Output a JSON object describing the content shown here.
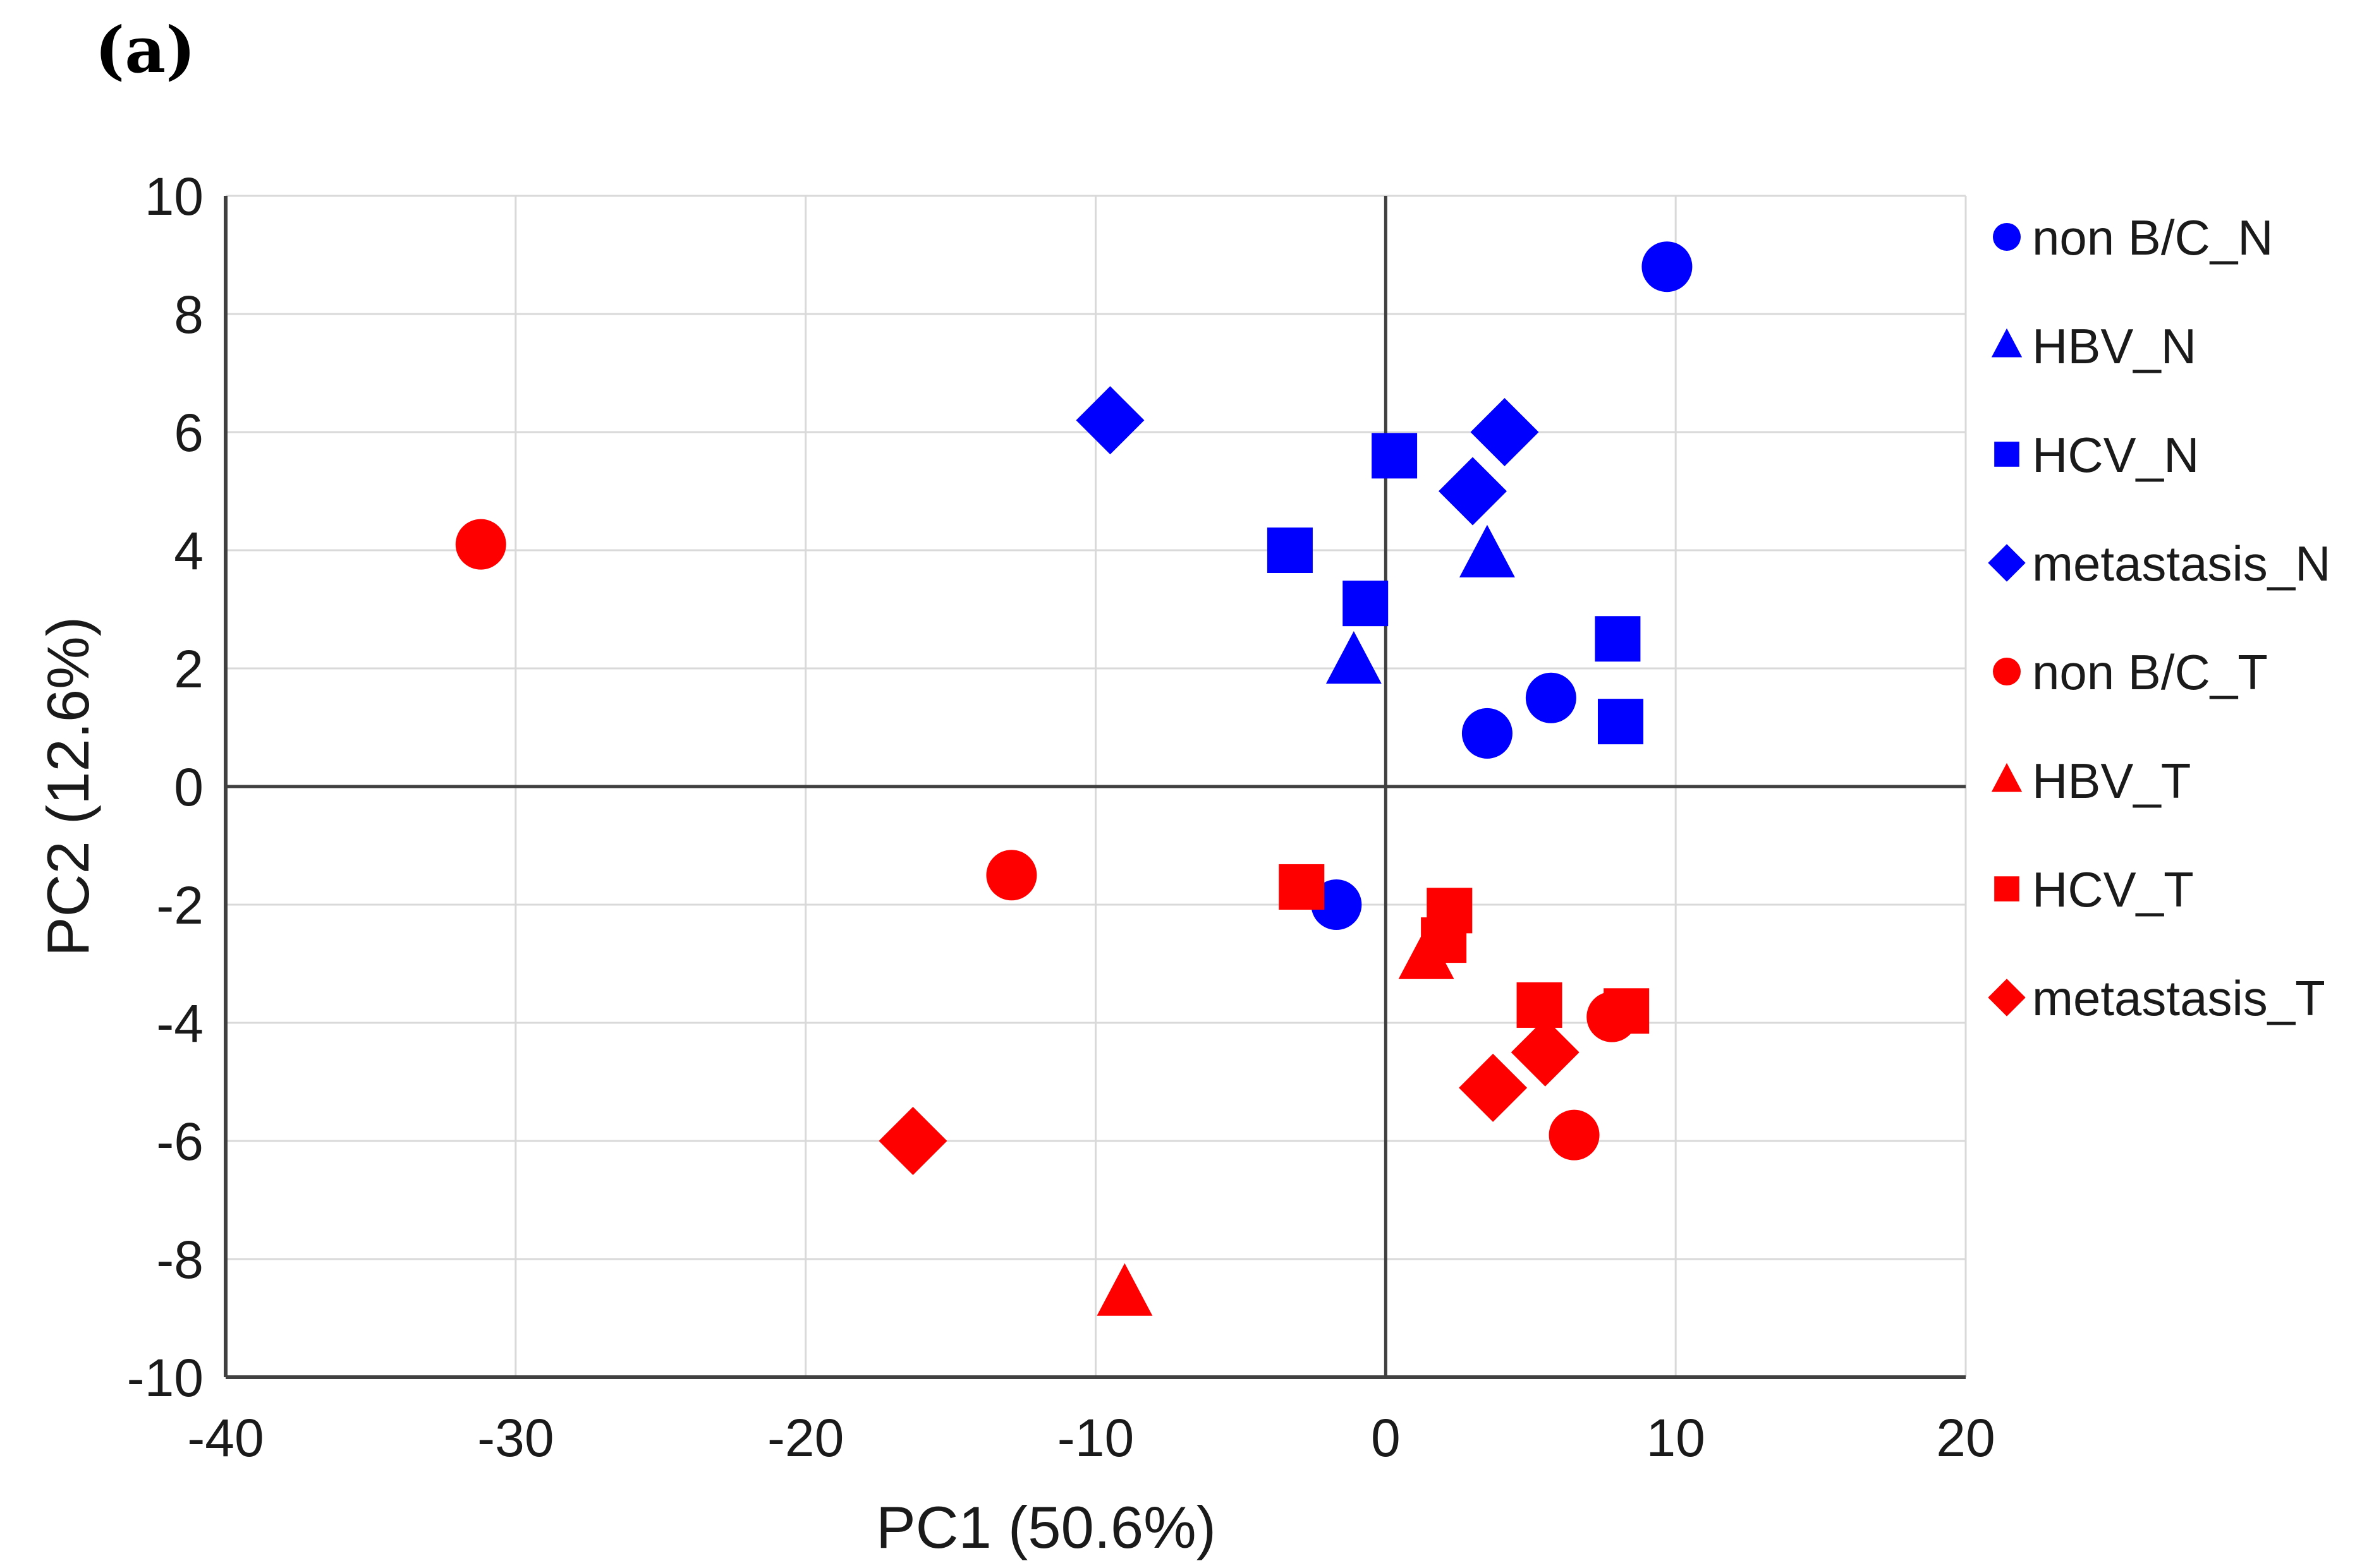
{
  "panel_label": "(a)",
  "chart_data": {
    "type": "scatter",
    "xlabel": "PC1 (50.6%)",
    "ylabel": "PC2 (12.6%)",
    "xlim": [
      -40,
      20
    ],
    "ylim": [
      -10,
      10
    ],
    "xticks": [
      -40,
      -30,
      -20,
      -10,
      0,
      10,
      20
    ],
    "yticks": [
      -10,
      -8,
      -6,
      -4,
      -2,
      0,
      2,
      4,
      6,
      8,
      10
    ],
    "grid": true,
    "legend_position": "right",
    "colors": {
      "N": "#0000ff",
      "T": "#ff0000"
    },
    "series": [
      {
        "name": "non B/C_N",
        "marker": "circle",
        "color": "#0000ff",
        "points": [
          [
            9.7,
            8.8
          ],
          [
            5.7,
            1.5
          ],
          [
            3.5,
            0.9
          ],
          [
            -1.7,
            -2.0
          ]
        ]
      },
      {
        "name": "HBV_N",
        "marker": "triangle",
        "color": "#0000ff",
        "points": [
          [
            3.5,
            3.9
          ],
          [
            -1.1,
            2.1
          ]
        ]
      },
      {
        "name": "HCV_N",
        "marker": "square",
        "color": "#0000ff",
        "points": [
          [
            0.3,
            5.6
          ],
          [
            -3.3,
            4.0
          ],
          [
            -0.7,
            3.1
          ],
          [
            8.0,
            2.5
          ],
          [
            8.1,
            1.1
          ]
        ]
      },
      {
        "name": "metastasis_N",
        "marker": "diamond",
        "color": "#0000ff",
        "points": [
          [
            -9.5,
            6.2
          ],
          [
            4.1,
            6.0
          ],
          [
            3.0,
            5.0
          ]
        ]
      },
      {
        "name": "non B/C_T",
        "marker": "circle",
        "color": "#ff0000",
        "points": [
          [
            -31.2,
            4.1
          ],
          [
            -12.9,
            -1.5
          ],
          [
            7.8,
            -3.9
          ],
          [
            6.5,
            -5.9
          ]
        ]
      },
      {
        "name": "HBV_T",
        "marker": "triangle",
        "color": "#ff0000",
        "points": [
          [
            1.4,
            -2.9
          ],
          [
            -9.0,
            -8.6
          ]
        ]
      },
      {
        "name": "HCV_T",
        "marker": "square",
        "color": "#ff0000",
        "points": [
          [
            -2.9,
            -1.7
          ],
          [
            2.2,
            -2.1
          ],
          [
            2.0,
            -2.6
          ],
          [
            5.3,
            -3.7
          ],
          [
            8.3,
            -3.8
          ]
        ]
      },
      {
        "name": "metastasis_T",
        "marker": "diamond",
        "color": "#ff0000",
        "points": [
          [
            -16.3,
            -6.0
          ],
          [
            5.5,
            -4.5
          ],
          [
            3.7,
            -5.1
          ]
        ]
      }
    ]
  }
}
